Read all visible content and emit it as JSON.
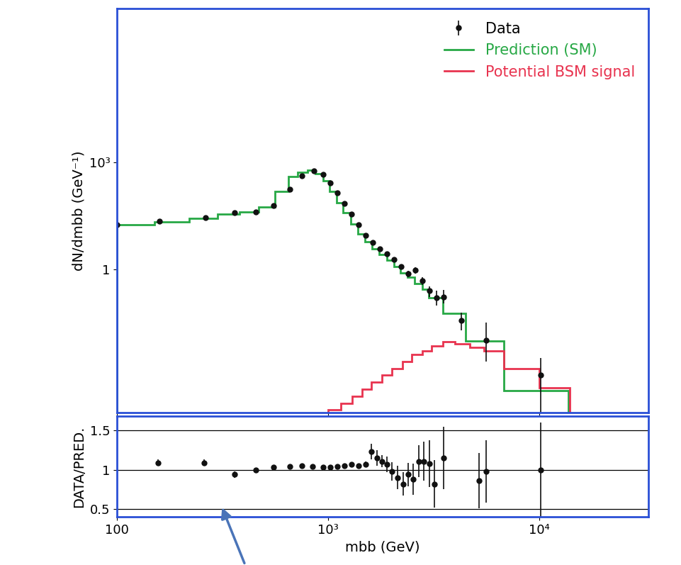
{
  "chart_data": [
    {
      "type": "line",
      "log": true,
      "xlim": [
        100,
        33000
      ],
      "ylim": [
        0.0001,
        20000000
      ],
      "xticks": [
        100,
        {
          "value": 1000,
          "label": "10³"
        },
        {
          "value": 10000,
          "label": "10⁴"
        }
      ],
      "yticks": [
        1,
        {
          "value": 1000,
          "label": "10³"
        }
      ],
      "y_label": "dN/dmbb (GeV⁻¹)",
      "tick_labels": "y",
      "legend": "upper right",
      "series": [
        {
          "name": "Data",
          "type": "scatter",
          "color": "#111111",
          "marker": "o",
          "x": [
            100,
            159,
            263,
            359,
            454,
            550,
            657,
            750,
            857,
            947,
            1023,
            1107,
            1195,
            1295,
            1395,
            1510,
            1630,
            1760,
            1900,
            2060,
            2220,
            2400,
            2590,
            2800,
            3020,
            3270,
            3540,
            4290,
            5630,
            10230
          ],
          "values": [
            18,
            22,
            28,
            39,
            40,
            61,
            172,
            426,
            580,
            465,
            270,
            137,
            70,
            35,
            18,
            9.1,
            5.8,
            3.7,
            2.7,
            1.9,
            1.2,
            0.76,
            0.95,
            0.49,
            0.25,
            0.16,
            0.17,
            0.037,
            0.0104,
            0.0011
          ],
          "err_low": [
            1,
            1.5,
            2,
            2,
            2,
            3,
            5,
            10,
            15,
            12,
            8,
            5,
            3,
            2,
            1,
            0.6,
            0.5,
            0.4,
            0.3,
            0.3,
            0.2,
            0.15,
            0.2,
            0.12,
            0.08,
            0.06,
            0.06,
            0.017,
            0.0077,
            0.00105
          ],
          "err_high": [
            1,
            1.5,
            2,
            2,
            2,
            3,
            5,
            10,
            15,
            12,
            8,
            5,
            3,
            2,
            1,
            0.6,
            0.5,
            0.4,
            0.3,
            0.3,
            0.2,
            0.15,
            0.2,
            0.12,
            0.08,
            0.1,
            0.1,
            0.026,
            0.022,
            0.0023
          ]
        },
        {
          "name": "Prediction (SM)",
          "type": "step",
          "color": "#27a845",
          "bins": [
            100,
            150,
            220,
            300,
            380,
            470,
            560,
            650,
            720,
            800,
            870,
            950,
            1020,
            1100,
            1180,
            1280,
            1380,
            1500,
            1620,
            1750,
            1900,
            2050,
            2200,
            2380,
            2580,
            2800,
            3000,
            3500,
            4500,
            6800,
            13800
          ],
          "values": [
            18,
            21,
            27,
            35,
            40,
            55,
            150,
            400,
            520,
            600,
            480,
            300,
            150,
            75,
            38,
            19,
            10,
            6,
            3.8,
            2.6,
            1.8,
            1.2,
            0.8,
            0.6,
            0.4,
            0.28,
            0.16,
            0.06,
            0.01,
            0.0004
          ]
        },
        {
          "name": "Potential BSM signal",
          "type": "step",
          "color": "#e8334f",
          "bins": [
            1000,
            1150,
            1300,
            1450,
            1600,
            1800,
            2000,
            2250,
            2500,
            2800,
            3100,
            3500,
            4000,
            4700,
            5500,
            6800,
            10000,
            14000
          ],
          "values": [
            0.00012,
            0.00018,
            0.00028,
            0.00045,
            0.0007,
            0.0011,
            0.0017,
            0.0027,
            0.0042,
            0.0053,
            0.0073,
            0.0096,
            0.0084,
            0.0066,
            0.0053,
            0.0017,
            0.00048
          ]
        }
      ]
    },
    {
      "type": "scatter",
      "log": "x",
      "xlim": [
        100,
        33000
      ],
      "ylim": [
        0.4,
        1.68
      ],
      "xticks": [
        100,
        {
          "value": 1000,
          "label": "10³"
        },
        {
          "value": 10000,
          "label": "10⁴"
        }
      ],
      "yticks": [
        0.5,
        1,
        1.5
      ],
      "grid": true,
      "x_label": "mbb (GeV)",
      "y_label": "DATA/PRED.",
      "series": [
        {
          "color": "#111111",
          "marker": "o",
          "x": [
            156,
            258,
            359,
            454,
            550,
            657,
            750,
            843,
            947,
            1023,
            1107,
            1195,
            1295,
            1395,
            1510,
            1600,
            1706,
            1804,
            1900,
            2010,
            2130,
            2276,
            2400,
            2535,
            2700,
            2850,
            3020,
            3200,
            3540,
            5210,
            5630,
            10230
          ],
          "values": [
            1.09,
            1.09,
            0.94,
            1.0,
            1.03,
            1.04,
            1.05,
            1.04,
            1.03,
            1.03,
            1.04,
            1.05,
            1.07,
            1.05,
            1.07,
            1.23,
            1.15,
            1.11,
            1.07,
            0.98,
            0.9,
            0.82,
            0.94,
            0.88,
            1.11,
            1.11,
            1.08,
            0.82,
            1.15,
            0.86,
            0.98,
            1.0
          ],
          "errors": [
            0.04,
            0.04,
            0.04,
            0.02,
            0.02,
            0.02,
            0.02,
            0.02,
            0.02,
            0.02,
            0.02,
            0.02,
            0.03,
            0.03,
            0.04,
            0.1,
            0.1,
            0.08,
            0.1,
            0.12,
            0.15,
            0.15,
            0.15,
            0.2,
            0.2,
            0.25,
            0.3,
            0.3,
            0.4,
            0.35,
            0.4,
            0.6
          ]
        }
      ]
    }
  ]
}
